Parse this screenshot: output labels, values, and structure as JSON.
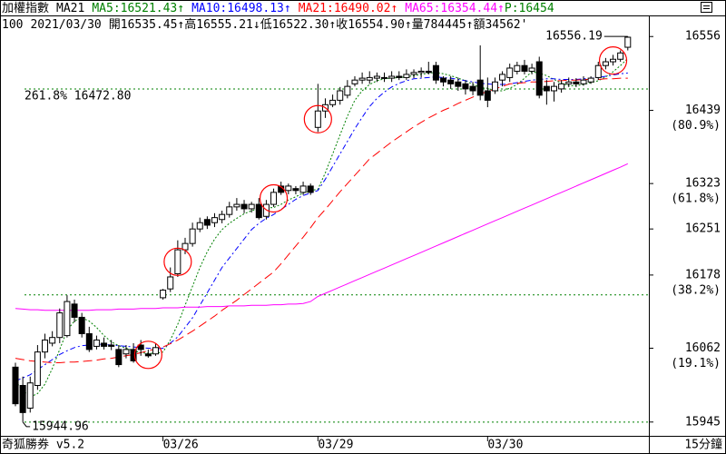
{
  "chart_data": {
    "type": "candlestick",
    "title": "加權指數",
    "indicator": "MA21",
    "legend_separator": ":",
    "p_label": "P",
    "p_value": 16454,
    "quote": {
      "count": "100",
      "date": "2021/03/30",
      "items": [
        {
          "label": "開",
          "value": "16535.45"
        },
        {
          "trend": "↑",
          "label": "高",
          "value": "16555.21"
        },
        {
          "trend": "↓",
          "label": "低",
          "value": "16522.30"
        },
        {
          "trend": "↑",
          "label": "收",
          "value": "16554.90"
        },
        {
          "trend": "↑",
          "label": "量",
          "value": "784445"
        },
        {
          "trend": "↑",
          "label": "額",
          "value": "34562'"
        }
      ]
    },
    "ylim": [
      15926,
      16588
    ],
    "yticks": [
      16556,
      16439,
      16323,
      16251,
      16178,
      16062,
      15945
    ],
    "ytick_notes": [
      null,
      "(80.9%)",
      "(61.8%)",
      null,
      "(38.2%)",
      "(19.1%)",
      null
    ],
    "levels": [
      {
        "value": 16472.8,
        "label": "261.8% 16472.80"
      },
      {
        "value": 16146.56
      },
      {
        "value": 15944.96
      }
    ],
    "annotations": [
      {
        "value": 16556.19,
        "label": "16556.19"
      },
      {
        "value": 15944.96,
        "label": "15944.96"
      }
    ],
    "footer_left": "奇狐勝券 v5.2",
    "footer_right": "15分鐘",
    "up_color": "#ffffff",
    "down_color": "#000000",
    "signal_color": "#ff0000",
    "level_color": "#008000",
    "signal_bars": [
      18,
      22,
      35,
      41,
      81
    ],
    "categories": [
      null,
      null,
      null,
      null,
      null,
      null,
      null,
      null,
      null,
      null,
      null,
      null,
      null,
      null,
      null,
      null,
      null,
      null,
      null,
      null,
      "03/26",
      null,
      null,
      null,
      null,
      null,
      null,
      null,
      null,
      null,
      null,
      null,
      null,
      null,
      null,
      null,
      null,
      null,
      null,
      null,
      null,
      "03/29",
      null,
      null,
      null,
      null,
      null,
      null,
      null,
      null,
      null,
      null,
      null,
      null,
      null,
      null,
      null,
      null,
      null,
      null,
      null,
      null,
      null,
      null,
      "03/30",
      null,
      null,
      null,
      null,
      null,
      null,
      null,
      null,
      null,
      null,
      null,
      null,
      null,
      null,
      null,
      null,
      null,
      null,
      null
    ],
    "ohlc": [
      [
        16032,
        16039,
        15970,
        15974
      ],
      [
        16003,
        16017,
        15944.96,
        15960
      ],
      [
        15967,
        16017,
        15960,
        16007
      ],
      [
        16003,
        16067,
        15996,
        16056
      ],
      [
        16056,
        16085,
        16046,
        16075
      ],
      [
        16070,
        16089,
        16065,
        16079
      ],
      [
        16079,
        16125,
        16070,
        16118
      ],
      [
        16082,
        16146,
        16079,
        16136
      ],
      [
        16132,
        16139,
        16103,
        16111
      ],
      [
        16111,
        16118,
        16079,
        16085
      ],
      [
        16085,
        16096,
        16056,
        16060
      ],
      [
        16065,
        16082,
        16060,
        16075
      ],
      [
        16070,
        16079,
        16060,
        16065
      ],
      [
        16067,
        16075,
        16059,
        16065
      ],
      [
        16060,
        16067,
        16032,
        16036
      ],
      [
        16053,
        16067,
        16046,
        16060
      ],
      [
        16060,
        16070,
        16039,
        16042
      ],
      [
        16067,
        16075,
        16050,
        16060
      ],
      [
        16053,
        16060,
        16047,
        16050
      ],
      [
        16053,
        16070,
        16050,
        16063
      ],
      [
        16142,
        16156,
        16139,
        16154
      ],
      [
        16156,
        16190,
        16151,
        16175
      ],
      [
        16180,
        16233,
        16175,
        16218
      ],
      [
        16218,
        16237,
        16211,
        16228
      ],
      [
        16228,
        16261,
        16223,
        16251
      ],
      [
        16251,
        16269,
        16246,
        16261
      ],
      [
        16266,
        16271,
        16251,
        16257
      ],
      [
        16261,
        16276,
        16254,
        16269
      ],
      [
        16266,
        16280,
        16260,
        16274
      ],
      [
        16274,
        16294,
        16269,
        16286
      ],
      [
        16286,
        16300,
        16280,
        16290
      ],
      [
        16290,
        16297,
        16276,
        16283
      ],
      [
        16283,
        16294,
        16277,
        16290
      ],
      [
        16290,
        16300,
        16266,
        16269
      ],
      [
        16271,
        16297,
        16266,
        16290
      ],
      [
        16290,
        16315,
        16286,
        16309
      ],
      [
        16319,
        16326,
        16305,
        16309
      ],
      [
        16312,
        16323,
        16306,
        16319
      ],
      [
        16315,
        16319,
        16306,
        16312
      ],
      [
        16309,
        16326,
        16305,
        16319
      ],
      [
        16319,
        16323,
        16305,
        16309
      ],
      [
        16412,
        16481,
        16405,
        16438
      ],
      [
        16438,
        16458,
        16427,
        16448
      ],
      [
        16448,
        16464,
        16444,
        16455
      ],
      [
        16455,
        16476,
        16448,
        16470
      ],
      [
        16463,
        16487,
        16458,
        16477
      ],
      [
        16481,
        16493,
        16477,
        16487
      ],
      [
        16487,
        16499,
        16481,
        16490
      ],
      [
        16487,
        16501,
        16481,
        16491
      ],
      [
        16490,
        16499,
        16484,
        16493
      ],
      [
        16491,
        16499,
        16484,
        16490
      ],
      [
        16490,
        16501,
        16484,
        16493
      ],
      [
        16493,
        16501,
        16487,
        16491
      ],
      [
        16491,
        16504,
        16487,
        16496
      ],
      [
        16496,
        16504,
        16490,
        16499
      ],
      [
        16499,
        16507,
        16491,
        16501
      ],
      [
        16501,
        16516,
        16496,
        16499
      ],
      [
        16510,
        16516,
        16481,
        16487
      ],
      [
        16490,
        16493,
        16477,
        16484
      ],
      [
        16487,
        16493,
        16473,
        16481
      ],
      [
        16484,
        16491,
        16470,
        16477
      ],
      [
        16481,
        16487,
        16464,
        16473
      ],
      [
        16477,
        16484,
        16463,
        16470
      ],
      [
        16487,
        16542,
        16455,
        16463
      ],
      [
        16470,
        16491,
        16444,
        16455
      ],
      [
        16470,
        16491,
        16465,
        16484
      ],
      [
        16487,
        16501,
        16477,
        16496
      ],
      [
        16491,
        16513,
        16484,
        16506
      ],
      [
        16501,
        16516,
        16496,
        16510
      ],
      [
        16510,
        16519,
        16496,
        16501
      ],
      [
        16501,
        16513,
        16496,
        16506
      ],
      [
        16516,
        16524,
        16458,
        16463
      ],
      [
        16477,
        16487,
        16448,
        16470
      ],
      [
        16470,
        16484,
        16453,
        16477
      ],
      [
        16473,
        16487,
        16467,
        16481
      ],
      [
        16481,
        16491,
        16476,
        16484
      ],
      [
        16484,
        16490,
        16476,
        16481
      ],
      [
        16481,
        16493,
        16478,
        16487
      ],
      [
        16484,
        16493,
        16481,
        16490
      ],
      [
        16491,
        16516,
        16487,
        16510
      ],
      [
        16510,
        16522,
        16504,
        16516
      ],
      [
        16516,
        16527,
        16510,
        16520
      ],
      [
        16520,
        16534,
        16516,
        16530
      ],
      [
        16539,
        16556.19,
        16534,
        16554.9
      ]
    ],
    "series": [
      {
        "name": "MA5",
        "color": "#008000",
        "dash": "2,2",
        "trend": "↑",
        "values": [
          16010,
          15995,
          15985,
          15990,
          16005,
          16030,
          16060,
          16090,
          16105,
          16110,
          16105,
          16095,
          16082,
          16072,
          16066,
          16062,
          16058,
          16055,
          16054,
          16054,
          16056,
          16075,
          16100,
          16130,
          16160,
          16190,
          16215,
          16235,
          16250,
          16260,
          16268,
          16275,
          16280,
          16283,
          16284,
          16285,
          16290,
          16297,
          16302,
          16308,
          16312,
          16314,
          16340,
          16370,
          16400,
          16430,
          16455,
          16470,
          16480,
          16486,
          16489,
          16490,
          16491,
          16492,
          16494,
          16496,
          16498,
          16499,
          16497,
          16494,
          16490,
          16486,
          16480,
          16475,
          16474,
          16470,
          16470,
          16474,
          16480,
          16490,
          16500,
          16498,
          16494,
          16488,
          16482,
          16478,
          16478,
          16480,
          16483,
          16486,
          16492,
          16500,
          16510,
          16521.43
        ]
      },
      {
        "name": "MA10",
        "color": "#0000ff",
        "dash": "6,3,2,3",
        "trend": "↑",
        "values": [
          16010,
          16015,
          16020,
          16028,
          16036,
          16044,
          16052,
          16058,
          16063,
          16066,
          16067,
          16068,
          16068,
          16067,
          16066,
          16065,
          16064,
          16063,
          16062,
          16061,
          16062,
          16070,
          16080,
          16095,
          16110,
          16130,
          16150,
          16170,
          16190,
          16205,
          16220,
          16235,
          16250,
          16260,
          16268,
          16274,
          16282,
          16290,
          16298,
          16304,
          16308,
          16312,
          16330,
          16350,
          16370,
          16390,
          16410,
          16428,
          16445,
          16458,
          16468,
          16476,
          16482,
          16486,
          16489,
          16490,
          16491,
          16492,
          16491,
          16490,
          16488,
          16486,
          16484,
          16482,
          16481,
          16480,
          16480,
          16481,
          16483,
          16485,
          16487,
          16488,
          16489,
          16489,
          16488,
          16488,
          16488,
          16489,
          16490,
          16491,
          16493,
          16495,
          16497,
          16498.13
        ]
      },
      {
        "name": "MA21",
        "color": "#ff0000",
        "dash": "10,5",
        "trend": "↑",
        "values": [
          16046,
          16044,
          16042,
          16041,
          16040,
          16039,
          16039,
          16040,
          16040,
          16041,
          16042,
          16043,
          16045,
          16046,
          16048,
          16050,
          16052,
          16055,
          16058,
          16061,
          16064,
          16069,
          16075,
          16082,
          16089,
          16097,
          16105,
          16113,
          16122,
          16130,
          16138,
          16147,
          16156,
          16165,
          16174,
          16183,
          16196,
          16210,
          16224,
          16238,
          16253,
          16269,
          16282,
          16296,
          16310,
          16323,
          16336,
          16349,
          16362,
          16371,
          16380,
          16389,
          16397,
          16405,
          16413,
          16420,
          16427,
          16433,
          16439,
          16444,
          16450,
          16455,
          16460,
          16465,
          16469,
          16473,
          16477,
          16481,
          16482,
          16483,
          16484,
          16484,
          16485,
          16486,
          16486,
          16487,
          16487,
          16488,
          16488,
          16488,
          16489,
          16489,
          16490,
          16490.02
        ]
      },
      {
        "name": "MA65",
        "color": "#ff00ff",
        "dash": "none",
        "trend": "↑",
        "values": [
          16125,
          16124,
          16123,
          16123,
          16122,
          16122,
          16122,
          16122,
          16122,
          16122,
          16122,
          16123,
          16123,
          16123,
          16124,
          16124,
          16124,
          16125,
          16125,
          16125,
          16126,
          16126,
          16126,
          16127,
          16127,
          16127,
          16128,
          16128,
          16128,
          16129,
          16129,
          16129,
          16130,
          16130,
          16130,
          16131,
          16131,
          16132,
          16132,
          16133,
          16136,
          16144,
          16149,
          16154,
          16159,
          16164,
          16169,
          16174,
          16179,
          16184,
          16189,
          16194,
          16199,
          16204,
          16209,
          16214,
          16219,
          16224,
          16229,
          16234,
          16239,
          16244,
          16249,
          16254,
          16259,
          16264,
          16269,
          16274,
          16279,
          16284,
          16289,
          16294,
          16299,
          16304,
          16309,
          16314,
          16319,
          16324,
          16329,
          16334,
          16339,
          16344,
          16349,
          16354.44
        ]
      }
    ]
  }
}
